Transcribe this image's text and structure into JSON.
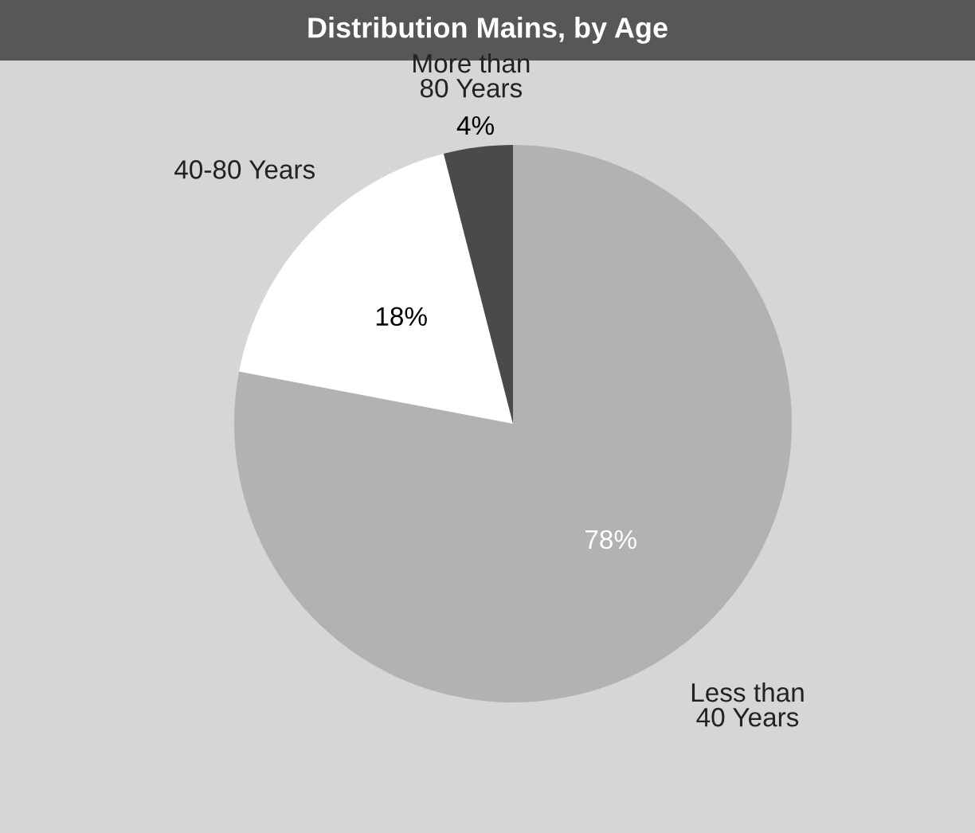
{
  "chart_data": {
    "type": "pie",
    "title": "Distribution Mains, by Age",
    "categories": [
      "Less than\n40 Years",
      "40-80 Years",
      "More than\n80 Years"
    ],
    "values": [
      78,
      18,
      4
    ],
    "colors": [
      "#b2b2b2",
      "#ffffff",
      "#4a4a4a"
    ],
    "value_labels": [
      "78%",
      "18%",
      "4%"
    ]
  }
}
